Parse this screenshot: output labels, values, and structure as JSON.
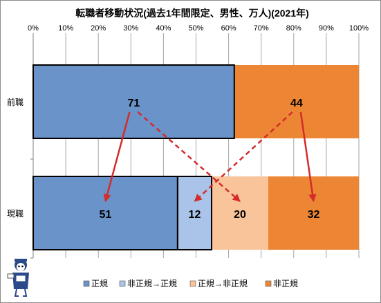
{
  "chart_data": {
    "type": "bar",
    "orientation": "horizontal",
    "stacked_percent": true,
    "title": "転職者移動状況(過去1年間限定、男性、万人)(2021年)",
    "categories": [
      "前職",
      "現職"
    ],
    "xlim": [
      0,
      100
    ],
    "x_ticks": [
      "0%",
      "10%",
      "20%",
      "30%",
      "40%",
      "50%",
      "60%",
      "70%",
      "80%",
      "90%",
      "100%"
    ],
    "grid": true,
    "legend_position": "bottom",
    "series": [
      {
        "name": "正規",
        "color": "#6a93c9",
        "values": [
          71,
          51
        ]
      },
      {
        "name": "非正規→正規",
        "color": "#a9c4e8",
        "values": [
          0,
          12
        ]
      },
      {
        "name": "正規→非正規",
        "color": "#f9c49a",
        "values": [
          0,
          20
        ]
      },
      {
        "name": "非正規",
        "color": "#ec8635",
        "values": [
          44,
          32
        ]
      }
    ],
    "data_labels": {
      "前職": [
        "71",
        "44"
      ],
      "現職": [
        "51",
        "12",
        "20",
        "32"
      ]
    },
    "annotations": {
      "arrow_color": "#d42b2b",
      "arrows": [
        {
          "from": "前職.正規",
          "to": "現職.正規",
          "style": "solid"
        },
        {
          "from": "前職.正規",
          "to": "現職.正規→非正規",
          "style": "dashed"
        },
        {
          "from": "前職.非正規",
          "to": "現職.非正規→正規",
          "style": "dashed"
        },
        {
          "from": "前職.非正規",
          "to": "現職.非正規",
          "style": "solid"
        }
      ]
    }
  }
}
